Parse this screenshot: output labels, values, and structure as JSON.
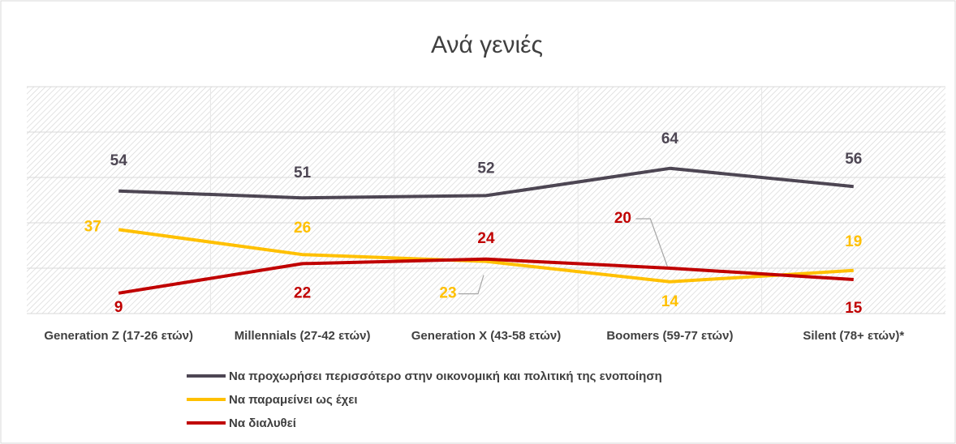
{
  "chart_data": {
    "type": "line",
    "title": "Ανά γενιές",
    "categories": [
      "Generation Z (17-26 ετών)",
      "Millennials (27-42 ετών)",
      "Generation X (43-58 ετών)",
      "Boomers (59-77 ετών)",
      "Silent (78+ ετών)*"
    ],
    "series": [
      {
        "name": "Να προχωρήσει περισσότερο στην οικονομική και πολιτική της ενοποίηση",
        "color": "#4d4653",
        "values": [
          54,
          51,
          52,
          64,
          56
        ]
      },
      {
        "name": "Να παραμείνει ως έχει",
        "color": "#ffc000",
        "values": [
          37,
          26,
          23,
          14,
          19
        ]
      },
      {
        "name": "Να διαλυθεί",
        "color": "#c00000",
        "values": [
          9,
          22,
          24,
          20,
          15
        ]
      }
    ],
    "ylim": [
      0,
      100
    ],
    "yticks": [
      0,
      20,
      40,
      60,
      80,
      100
    ],
    "grid": true
  }
}
